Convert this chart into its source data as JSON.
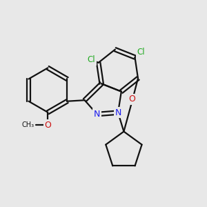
{
  "background_color": "#e8e8e8",
  "bond_color": "#111111",
  "bond_lw": 1.6,
  "N_color": "#1a1aee",
  "O_color": "#cc1111",
  "Cl_color": "#22aa22",
  "figsize": [
    3.0,
    3.0
  ],
  "dpi": 100,
  "xlim": [
    0,
    10
  ],
  "ylim": [
    0,
    10
  ]
}
